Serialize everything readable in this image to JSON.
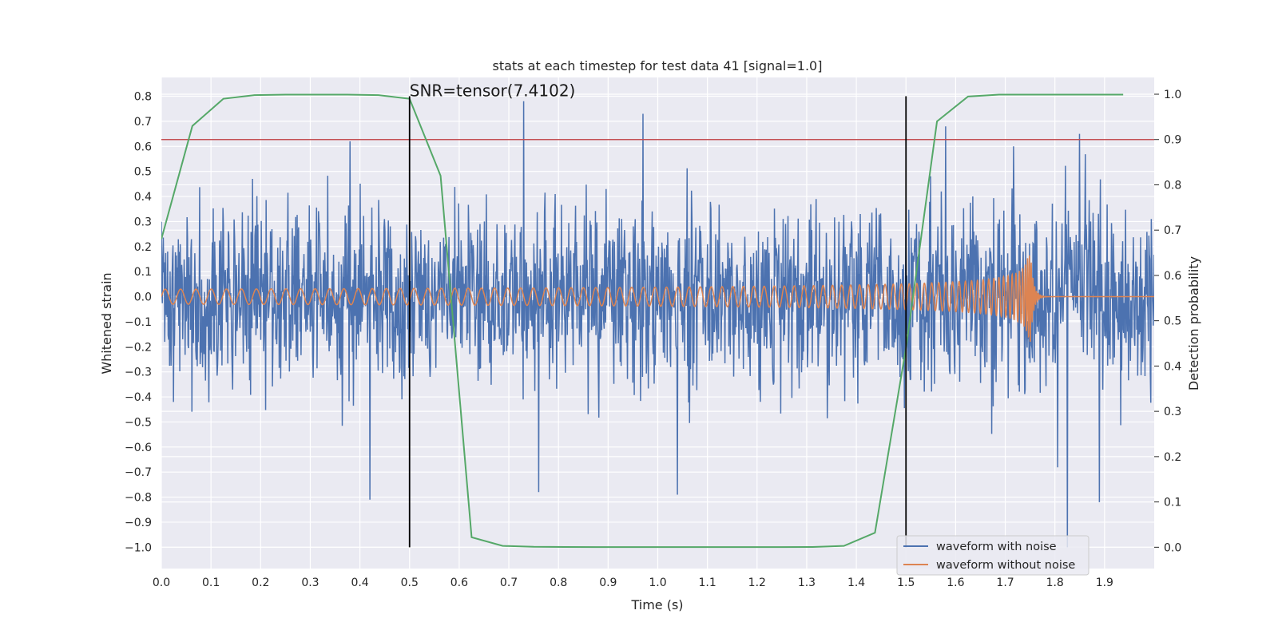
{
  "chart_data": {
    "type": "line",
    "title": "stats at each timestep for test data 41 [signal=1.0]",
    "xlabel": "Time (s)",
    "ylabel": "Whitened strain",
    "y2label": "Detection probability",
    "xlim": [
      0,
      2.0
    ],
    "ylim": [
      -1.085,
      0.875
    ],
    "y2lim": [
      -0.047,
      1.037
    ],
    "x_ticks": [
      0.0,
      0.1,
      0.2,
      0.3,
      0.4,
      0.5,
      0.6,
      0.7,
      0.8,
      0.9,
      1.0,
      1.1,
      1.2,
      1.3,
      1.4,
      1.5,
      1.6,
      1.7,
      1.8,
      1.9
    ],
    "x_tick_labels": [
      "0.0",
      "0.1",
      "0.2",
      "0.3",
      "0.4",
      "0.5",
      "0.6",
      "0.7",
      "0.8",
      "0.9",
      "1.0",
      "1.1",
      "1.2",
      "1.3",
      "1.4",
      "1.5",
      "1.6",
      "1.7",
      "1.8",
      "1.9"
    ],
    "y_ticks": [
      0.8,
      0.7,
      0.6,
      0.5,
      0.4,
      0.3,
      0.2,
      0.1,
      0.0,
      -0.1,
      -0.2,
      -0.3,
      -0.4,
      -0.5,
      -0.6,
      -0.7,
      -0.8,
      -0.9,
      -1.0
    ],
    "y_tick_labels": [
      "0.8",
      "0.7",
      "0.6",
      "0.5",
      "0.4",
      "0.3",
      "0.2",
      "0.1",
      "0.0",
      "−0.1",
      "−0.2",
      "−0.3",
      "−0.4",
      "−0.5",
      "−0.6",
      "−0.7",
      "−0.8",
      "−0.9",
      "−1.0"
    ],
    "y2_ticks": [
      1.0,
      0.9,
      0.8,
      0.7,
      0.6,
      0.5,
      0.4,
      0.3,
      0.2,
      0.1,
      0.0
    ],
    "y2_tick_labels": [
      "1.0",
      "0.9",
      "0.8",
      "0.7",
      "0.6",
      "0.5",
      "0.4",
      "0.3",
      "0.2",
      "0.1",
      "0.0"
    ],
    "grid": true,
    "legend_position": "lower-right",
    "annotation": {
      "text": "SNR=tensor(7.4102)",
      "x": 0.5,
      "y": 0.8
    },
    "vertical_lines": [
      {
        "x": 0.5,
        "y_from": -1.0,
        "y_to": 0.8,
        "color": "#000000"
      },
      {
        "x": 1.5,
        "y_from": -1.0,
        "y_to": 0.8,
        "color": "#000000"
      }
    ],
    "threshold": {
      "y2": 0.9,
      "color": "#c44e52"
    },
    "series": [
      {
        "name": "waveform with noise",
        "color": "#4c72b0",
        "axis": "left",
        "note_style": "noise",
        "x_range": [
          0.0,
          2.0
        ],
        "amplitude_sigma": 0.2,
        "peaks": [
          [
            0.73,
            0.78
          ],
          [
            0.97,
            0.73
          ],
          [
            1.58,
            0.68
          ],
          [
            1.85,
            0.65
          ],
          [
            0.38,
            0.62
          ],
          [
            0.42,
            -0.81
          ],
          [
            1.04,
            -0.79
          ],
          [
            1.825,
            -1.0
          ],
          [
            1.89,
            -0.82
          ],
          [
            0.76,
            -0.78
          ]
        ]
      },
      {
        "name": "waveform without noise",
        "color": "#dd8452",
        "axis": "left",
        "note_style": "chirp",
        "x_range": [
          0.0,
          2.0
        ],
        "base_amplitude": 0.03,
        "peak_amplitude": 0.2,
        "merger_time": 1.75,
        "base_frequency_hz": 32
      },
      {
        "name": "",
        "color": "#55a868",
        "axis": "right",
        "x": [
          0.0,
          0.0625,
          0.125,
          0.1875,
          0.25,
          0.3125,
          0.375,
          0.4375,
          0.5,
          0.5625,
          0.625,
          0.6875,
          0.75,
          0.8125,
          0.875,
          0.9375,
          1.0,
          1.0625,
          1.125,
          1.1875,
          1.25,
          1.3125,
          1.375,
          1.4375,
          1.5,
          1.5625,
          1.625,
          1.6875,
          1.75,
          1.8125,
          1.875,
          1.9375
        ],
        "values": [
          0.68,
          0.93,
          0.99,
          0.998,
          0.999,
          0.999,
          0.999,
          0.998,
          0.99,
          0.82,
          0.022,
          0.003,
          0.001,
          0.0005,
          0.0004,
          0.0004,
          0.0004,
          0.0004,
          0.0004,
          0.0004,
          0.0004,
          0.0007,
          0.003,
          0.032,
          0.44,
          0.94,
          0.995,
          0.999,
          0.999,
          0.999,
          0.999,
          0.999
        ]
      }
    ]
  }
}
